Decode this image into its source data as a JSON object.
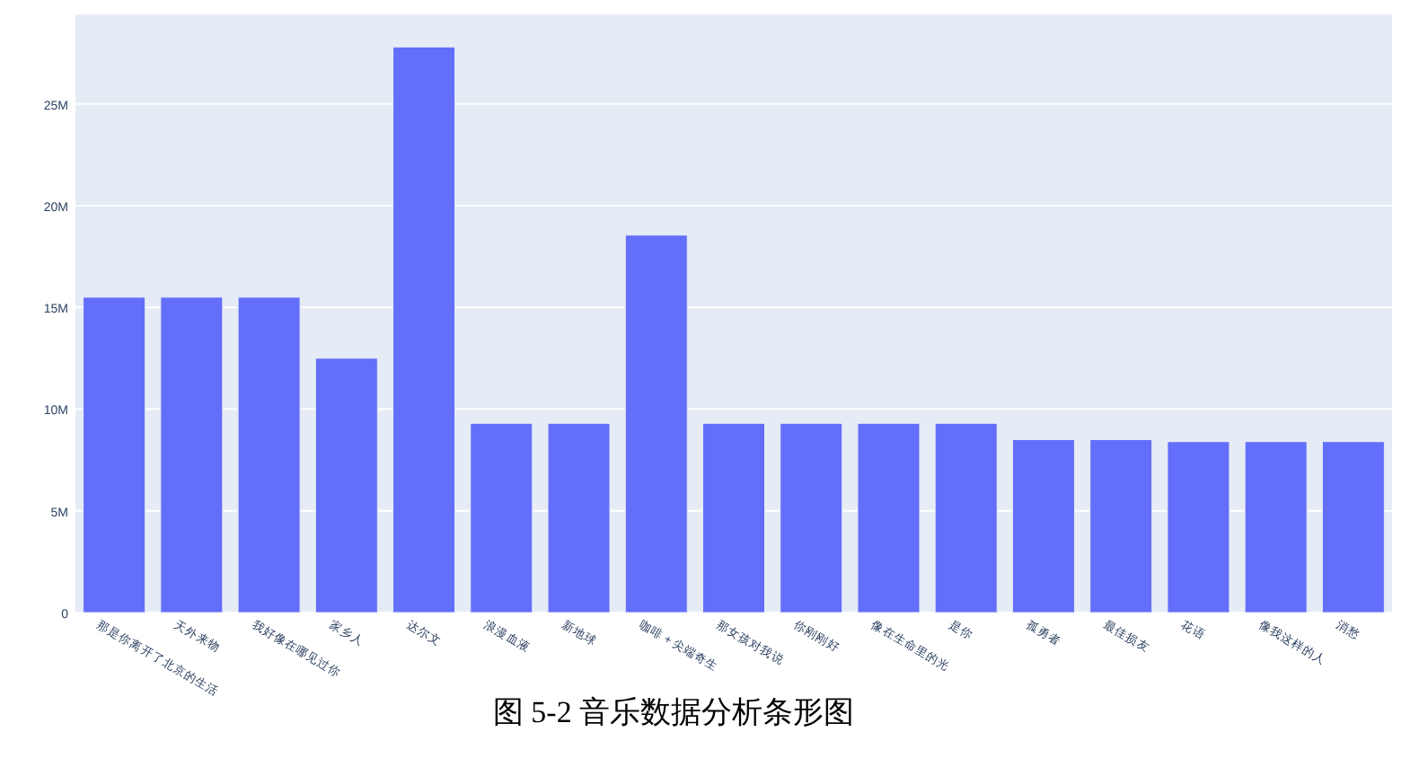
{
  "chart_data": {
    "type": "bar",
    "categories": [
      "那是你离开了北京的生活",
      "天外来物",
      "我好像在哪见过你",
      "家乡人",
      "达尔文",
      "浪漫血液",
      "新地球",
      "咖啡 + 尖端奇生",
      "那女孩对我说",
      "你刚刚好",
      "像在生命里的光",
      "是你",
      "孤勇者",
      "最佳损友",
      "花语",
      "像我这样的人",
      "消愁"
    ],
    "values": [
      15500000,
      15500000,
      15500000,
      12500000,
      27800000,
      9300000,
      9300000,
      18550000,
      9300000,
      9300000,
      9300000,
      9300000,
      8500000,
      8500000,
      8400000,
      8400000,
      8400000
    ],
    "color": "#636efa",
    "ylim": [
      0,
      29400000
    ],
    "yticks": [
      0,
      {
        "value": 5000000,
        "label": "5M"
      },
      {
        "value": 10000000,
        "label": "10M"
      },
      {
        "value": 15000000,
        "label": "15M"
      },
      {
        "value": 20000000,
        "label": "20M"
      },
      {
        "value": 25000000,
        "label": "25M"
      }
    ],
    "grid": "y",
    "annotations": [
      "图 5-2 音乐数据分析条形图"
    ]
  }
}
